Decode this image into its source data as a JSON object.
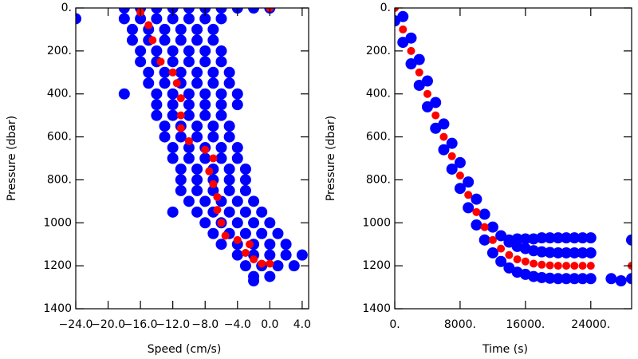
{
  "chart_data": [
    {
      "type": "scatter",
      "xlabel": "Speed (cm/s)",
      "ylabel": "Pressure (dbar)",
      "yaxis_reversed": true,
      "xlim": [
        -24,
        4.8
      ],
      "ylim": [
        0,
        1400
      ],
      "xticks": [
        {
          "value": -24,
          "label": "−24.0"
        },
        {
          "value": -20,
          "label": "−20.0"
        },
        {
          "value": -16,
          "label": "−16.0"
        },
        {
          "value": -12,
          "label": "−12.0"
        },
        {
          "value": -8,
          "label": "−8.0"
        },
        {
          "value": -4,
          "label": "−4.0"
        },
        {
          "value": 0,
          "label": "0.0"
        },
        {
          "value": 4,
          "label": "4.0"
        }
      ],
      "yticks": [
        {
          "value": 0,
          "label": "0."
        },
        {
          "value": 200,
          "label": "200."
        },
        {
          "value": 400,
          "label": "400."
        },
        {
          "value": 600,
          "label": "600."
        },
        {
          "value": 800,
          "label": "800."
        },
        1000,
        1200,
        1400
      ],
      "series": [
        {
          "color": "#0000ff",
          "x": [
            -18,
            -16,
            -14,
            -12,
            -10,
            -8,
            -6,
            -4,
            -2,
            0,
            -18,
            -16,
            -14,
            -12,
            -10,
            -8,
            -6,
            -17,
            -15,
            -13,
            -11,
            -9,
            -7,
            -17,
            -15,
            -13,
            -11,
            -9,
            -7,
            -16,
            -14,
            -12,
            -10,
            -8,
            -6,
            -16,
            -14,
            -12,
            -10,
            -8,
            -6,
            -15,
            -13,
            -11,
            -9,
            -7,
            -5,
            -15,
            -13,
            -11,
            -9,
            -7,
            -5,
            -14,
            -12,
            -10,
            -8,
            -6,
            -4,
            -14,
            -12,
            -10,
            -8,
            -6,
            -4,
            -14,
            -12,
            -10,
            -8,
            -6,
            -13,
            -11,
            -9,
            -7,
            -5,
            -13,
            -11,
            -9,
            -7,
            -5,
            -12,
            -10,
            -8,
            -6,
            -4,
            -12,
            -10,
            -8,
            -6,
            -4,
            -11,
            -9,
            -7,
            -5,
            -3,
            -11,
            -9,
            -7,
            -5,
            -3,
            -11,
            -9,
            -7,
            -5,
            -3,
            -10,
            -8,
            -6,
            -4,
            -2,
            -9,
            -7,
            -5,
            -3,
            -1,
            -8,
            -6,
            -4,
            -2,
            0,
            -7,
            -5,
            -3,
            -1,
            1,
            -6,
            -4,
            -2,
            0,
            2,
            -4,
            -2,
            0,
            2,
            4,
            -3,
            -1,
            1,
            3,
            -2,
            0,
            -24,
            -18,
            -12,
            -2
          ],
          "y": [
            0,
            0,
            0,
            0,
            0,
            0,
            0,
            0,
            0,
            0,
            50,
            50,
            50,
            50,
            50,
            50,
            50,
            100,
            100,
            100,
            100,
            100,
            100,
            150,
            150,
            150,
            150,
            150,
            150,
            200,
            200,
            200,
            200,
            200,
            200,
            250,
            250,
            250,
            250,
            250,
            250,
            300,
            300,
            300,
            300,
            300,
            300,
            350,
            350,
            350,
            350,
            350,
            350,
            400,
            400,
            400,
            400,
            400,
            400,
            450,
            450,
            450,
            450,
            450,
            450,
            500,
            500,
            500,
            500,
            500,
            550,
            550,
            550,
            550,
            550,
            600,
            600,
            600,
            600,
            600,
            650,
            650,
            650,
            650,
            650,
            700,
            700,
            700,
            700,
            700,
            750,
            750,
            750,
            750,
            750,
            800,
            800,
            800,
            800,
            800,
            850,
            850,
            850,
            850,
            850,
            900,
            900,
            900,
            900,
            900,
            950,
            950,
            950,
            950,
            950,
            1000,
            1000,
            1000,
            1000,
            1000,
            1050,
            1050,
            1050,
            1050,
            1050,
            1100,
            1100,
            1100,
            1100,
            1100,
            1150,
            1150,
            1150,
            1150,
            1150,
            1200,
            1200,
            1200,
            1200,
            1250,
            1250,
            50,
            400,
            950,
            1270
          ]
        },
        {
          "color": "#ff0000",
          "x": [
            -16,
            -15,
            -14.5,
            -13.5,
            -12,
            -11.5,
            -11,
            -11,
            -11,
            -10,
            -8,
            -7,
            -7.5,
            -7,
            -6.5,
            -6.5,
            -6,
            -5.5,
            -4,
            -2.5,
            -3,
            -2,
            -1,
            0,
            0
          ],
          "y": [
            20,
            80,
            150,
            250,
            300,
            350,
            420,
            500,
            560,
            620,
            660,
            700,
            760,
            820,
            880,
            940,
            1000,
            1060,
            1080,
            1100,
            1140,
            1170,
            1190,
            1190,
            0
          ]
        }
      ]
    },
    {
      "type": "scatter",
      "xlabel": "Time (s)",
      "ylabel": "Pressure (dbar)",
      "yaxis_reversed": true,
      "xlim": [
        0,
        29000
      ],
      "ylim": [
        0,
        1400
      ],
      "xticks": [
        {
          "value": 0,
          "label": "0."
        },
        {
          "value": 8000,
          "label": "8000."
        },
        {
          "value": 16000,
          "label": "16000."
        },
        {
          "value": 24000,
          "label": "24000."
        }
      ],
      "yticks": [
        {
          "value": 0,
          "label": "0."
        },
        {
          "value": 200,
          "label": "200."
        },
        {
          "value": 400,
          "label": "400."
        },
        {
          "value": 600,
          "label": "600."
        },
        {
          "value": 800,
          "label": "800."
        },
        1000,
        1200,
        1400
      ],
      "series": [
        {
          "color": "#0000ff",
          "x": [
            0,
            1000,
            2000,
            3000,
            4000,
            5000,
            6000,
            7000,
            8000,
            9000,
            10000,
            11000,
            12000,
            13000,
            14000,
            15000,
            16000,
            17000,
            18000,
            19000,
            20000,
            21000,
            22000,
            23000,
            24000,
            0,
            1000,
            2000,
            3000,
            4000,
            5000,
            6000,
            7000,
            8000,
            9000,
            10000,
            11000,
            12000,
            13000,
            14000,
            15000,
            16000,
            17000,
            18000,
            19000,
            20000,
            21000,
            22000,
            23000,
            24000,
            14000,
            15000,
            16000,
            17000,
            18000,
            19000,
            20000,
            21000,
            22000,
            23000,
            24000,
            26500,
            27700,
            29000,
            29000
          ],
          "y": [
            -60,
            40,
            140,
            240,
            340,
            440,
            540,
            630,
            720,
            810,
            890,
            960,
            1020,
            1060,
            1090,
            1110,
            1120,
            1130,
            1135,
            1138,
            1140,
            1140,
            1140,
            1140,
            1140,
            60,
            160,
            260,
            360,
            460,
            560,
            660,
            750,
            840,
            930,
            1010,
            1080,
            1140,
            1180,
            1210,
            1230,
            1240,
            1250,
            1255,
            1258,
            1260,
            1260,
            1260,
            1260,
            1260,
            1080,
            1075,
            1075,
            1075,
            1070,
            1070,
            1070,
            1070,
            1070,
            1070,
            1070,
            1260,
            1270,
            1260,
            1080
          ]
        },
        {
          "color": "#ff0000",
          "x": [
            0,
            1000,
            2000,
            3000,
            4000,
            5000,
            6000,
            7000,
            8000,
            9000,
            10000,
            11000,
            12000,
            13000,
            14000,
            15000,
            16000,
            17000,
            18000,
            19000,
            20000,
            21000,
            22000,
            23000,
            24000,
            29000
          ],
          "y": [
            0,
            100,
            200,
            300,
            400,
            500,
            600,
            690,
            780,
            870,
            950,
            1020,
            1080,
            1120,
            1150,
            1170,
            1180,
            1190,
            1195,
            1198,
            1200,
            1200,
            1200,
            1200,
            1200,
            1200
          ]
        }
      ]
    }
  ]
}
